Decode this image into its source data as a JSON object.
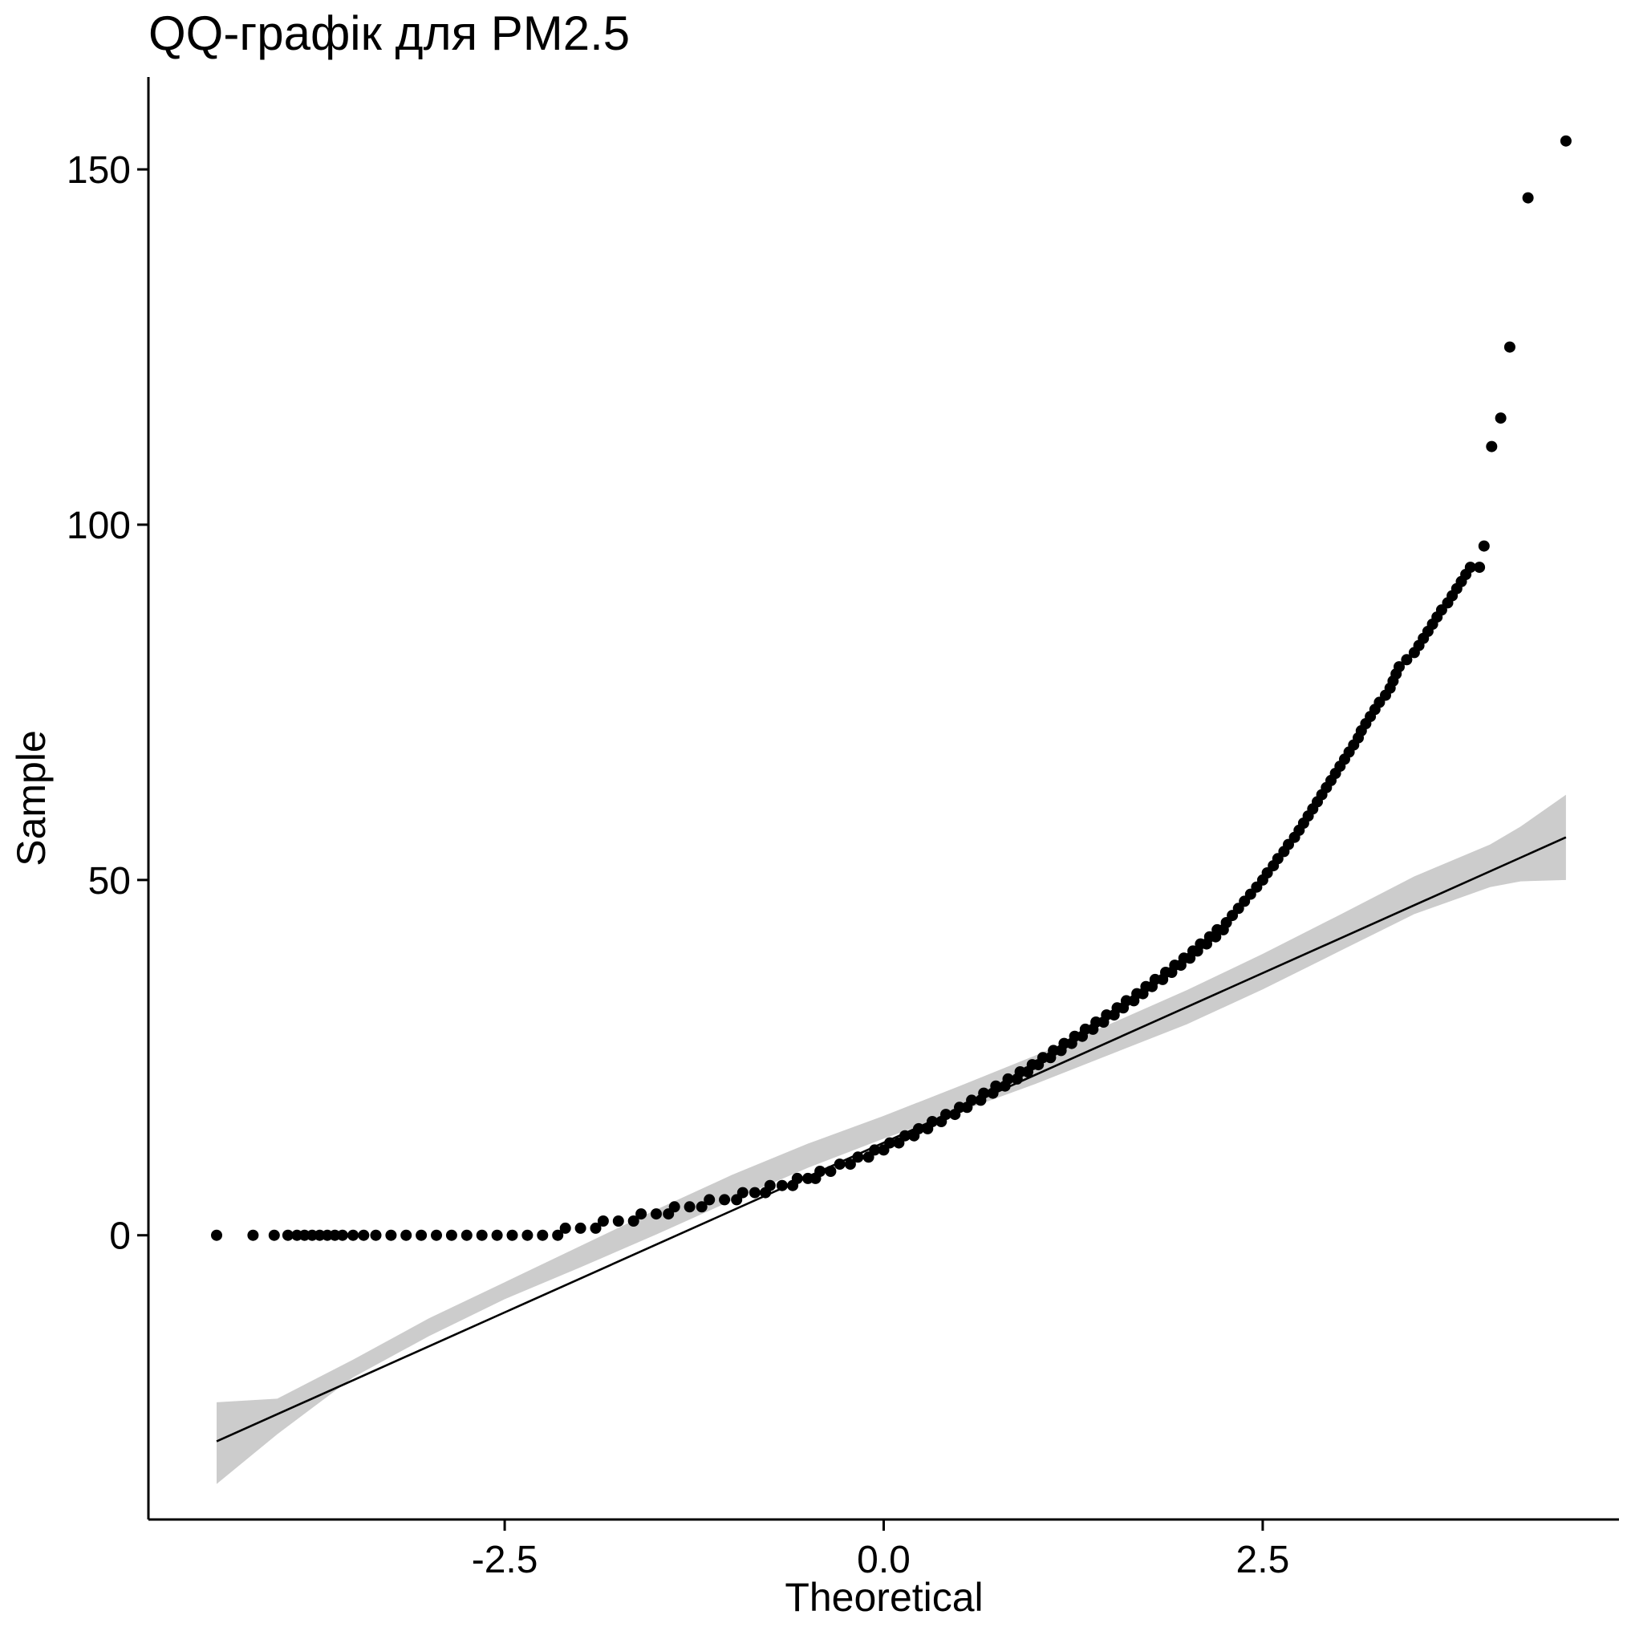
{
  "chart_data": {
    "type": "scatter",
    "title": "QQ-графік для PM2.5",
    "xlabel": "Theoretical",
    "ylabel": "Sample",
    "xlim": [
      -4.85,
      4.85
    ],
    "ylim": [
      -40,
      163
    ],
    "x_ticks": [
      -2.5,
      0.0,
      2.5
    ],
    "x_tick_labels": [
      "-2.5",
      "0.0",
      "2.5"
    ],
    "y_ticks": [
      0,
      50,
      100,
      150
    ],
    "y_tick_labels": [
      "0",
      "50",
      "100",
      "150"
    ],
    "grid": false,
    "legend": "none",
    "colors": {
      "points": "#000000",
      "line": "#000000",
      "band": "#cccccc"
    },
    "points": [
      [
        -4.4,
        0
      ],
      [
        -4.16,
        0
      ],
      [
        -4.02,
        0
      ],
      [
        -3.93,
        0
      ],
      [
        -3.87,
        0
      ],
      [
        -3.82,
        0
      ],
      [
        -3.77,
        0
      ],
      [
        -3.72,
        0
      ],
      [
        -3.67,
        0
      ],
      [
        -3.62,
        0
      ],
      [
        -3.57,
        0
      ],
      [
        -3.5,
        0
      ],
      [
        -3.43,
        0
      ],
      [
        -3.35,
        0
      ],
      [
        -3.25,
        0
      ],
      [
        -3.15,
        0
      ],
      [
        -3.05,
        0
      ],
      [
        -2.95,
        0
      ],
      [
        -2.85,
        0
      ],
      [
        -2.75,
        0
      ],
      [
        -2.65,
        0
      ],
      [
        -2.55,
        0
      ],
      [
        -2.45,
        0
      ],
      [
        -2.35,
        0
      ],
      [
        -2.25,
        0
      ],
      [
        -2.15,
        0
      ],
      [
        -2.1,
        1
      ],
      [
        -2.0,
        1
      ],
      [
        -1.9,
        1
      ],
      [
        -1.85,
        2
      ],
      [
        -1.75,
        2
      ],
      [
        -1.65,
        2
      ],
      [
        -1.6,
        3
      ],
      [
        -1.5,
        3
      ],
      [
        -1.42,
        3
      ],
      [
        -1.38,
        4
      ],
      [
        -1.28,
        4
      ],
      [
        -1.2,
        4
      ],
      [
        -1.15,
        5
      ],
      [
        -1.05,
        5
      ],
      [
        -0.97,
        5
      ],
      [
        -0.93,
        6
      ],
      [
        -0.85,
        6
      ],
      [
        -0.78,
        6
      ],
      [
        -0.75,
        7
      ],
      [
        -0.67,
        7
      ],
      [
        -0.6,
        7
      ],
      [
        -0.57,
        8
      ],
      [
        -0.5,
        8
      ],
      [
        -0.45,
        8
      ],
      [
        -0.42,
        9
      ],
      [
        -0.35,
        9
      ],
      [
        -0.29,
        10
      ],
      [
        -0.22,
        10
      ],
      [
        -0.17,
        11
      ],
      [
        -0.1,
        11
      ],
      [
        -0.06,
        12
      ],
      [
        0.0,
        12
      ],
      [
        0.04,
        13
      ],
      [
        0.1,
        13
      ],
      [
        0.14,
        14
      ],
      [
        0.2,
        14
      ],
      [
        0.23,
        15
      ],
      [
        0.29,
        15
      ],
      [
        0.32,
        16
      ],
      [
        0.38,
        16
      ],
      [
        0.41,
        17
      ],
      [
        0.47,
        17
      ],
      [
        0.5,
        18
      ],
      [
        0.55,
        18
      ],
      [
        0.58,
        19
      ],
      [
        0.64,
        19
      ],
      [
        0.66,
        20
      ],
      [
        0.72,
        20
      ],
      [
        0.74,
        21
      ],
      [
        0.8,
        21
      ],
      [
        0.82,
        22
      ],
      [
        0.88,
        22
      ],
      [
        0.9,
        23
      ],
      [
        0.95,
        23
      ],
      [
        0.98,
        24
      ],
      [
        1.02,
        24
      ],
      [
        1.05,
        25
      ],
      [
        1.1,
        25
      ],
      [
        1.12,
        26
      ],
      [
        1.17,
        26
      ],
      [
        1.19,
        27
      ],
      [
        1.24,
        27
      ],
      [
        1.26,
        28
      ],
      [
        1.31,
        28
      ],
      [
        1.33,
        29
      ],
      [
        1.38,
        29
      ],
      [
        1.4,
        30
      ],
      [
        1.45,
        30
      ],
      [
        1.47,
        31
      ],
      [
        1.52,
        31
      ],
      [
        1.54,
        32
      ],
      [
        1.58,
        32
      ],
      [
        1.6,
        33
      ],
      [
        1.65,
        33
      ],
      [
        1.67,
        34
      ],
      [
        1.71,
        34
      ],
      [
        1.73,
        35
      ],
      [
        1.77,
        35
      ],
      [
        1.79,
        36
      ],
      [
        1.84,
        36
      ],
      [
        1.86,
        37
      ],
      [
        1.9,
        37
      ],
      [
        1.92,
        38
      ],
      [
        1.96,
        38
      ],
      [
        1.98,
        39
      ],
      [
        2.02,
        39
      ],
      [
        2.04,
        40
      ],
      [
        2.07,
        40
      ],
      [
        2.09,
        41
      ],
      [
        2.13,
        41
      ],
      [
        2.15,
        42
      ],
      [
        2.19,
        42
      ],
      [
        2.2,
        43
      ],
      [
        2.24,
        43
      ],
      [
        2.26,
        44
      ],
      [
        2.3,
        45
      ],
      [
        2.34,
        46
      ],
      [
        2.38,
        47
      ],
      [
        2.42,
        48
      ],
      [
        2.46,
        49
      ],
      [
        2.5,
        50
      ],
      [
        2.53,
        51
      ],
      [
        2.57,
        52
      ],
      [
        2.6,
        53
      ],
      [
        2.64,
        54
      ],
      [
        2.67,
        55
      ],
      [
        2.71,
        56
      ],
      [
        2.74,
        57
      ],
      [
        2.77,
        58
      ],
      [
        2.8,
        59
      ],
      [
        2.83,
        60
      ],
      [
        2.86,
        61
      ],
      [
        2.89,
        62
      ],
      [
        2.92,
        63
      ],
      [
        2.95,
        64
      ],
      [
        2.98,
        65
      ],
      [
        3.01,
        66
      ],
      [
        3.04,
        67
      ],
      [
        3.07,
        68
      ],
      [
        3.1,
        69
      ],
      [
        3.13,
        70
      ],
      [
        3.15,
        71
      ],
      [
        3.18,
        72
      ],
      [
        3.21,
        73
      ],
      [
        3.24,
        74
      ],
      [
        3.27,
        75
      ],
      [
        3.31,
        76
      ],
      [
        3.34,
        77
      ],
      [
        3.36,
        78
      ],
      [
        3.38,
        79
      ],
      [
        3.4,
        80
      ],
      [
        3.45,
        81
      ],
      [
        3.5,
        82
      ],
      [
        3.53,
        83
      ],
      [
        3.56,
        84
      ],
      [
        3.59,
        85
      ],
      [
        3.62,
        86
      ],
      [
        3.65,
        87
      ],
      [
        3.68,
        88
      ],
      [
        3.72,
        89
      ],
      [
        3.75,
        90
      ],
      [
        3.78,
        91
      ],
      [
        3.81,
        92
      ],
      [
        3.84,
        93
      ],
      [
        3.87,
        94
      ],
      [
        3.93,
        94
      ],
      [
        3.96,
        97
      ],
      [
        4.01,
        111
      ],
      [
        4.07,
        115
      ],
      [
        4.13,
        125
      ],
      [
        4.25,
        146
      ],
      [
        4.5,
        154
      ]
    ],
    "reference_line": [
      [
        -4.4,
        -29
      ],
      [
        4.5,
        56
      ]
    ],
    "confidence_band": {
      "x": [
        -4.4,
        -4.0,
        -3.5,
        -3.0,
        -2.5,
        -2.0,
        -1.5,
        -1.0,
        -0.5,
        0.0,
        0.5,
        1.0,
        1.5,
        2.0,
        2.5,
        3.0,
        3.5,
        4.0,
        4.2,
        4.5
      ],
      "upper": [
        -23.5,
        -23,
        -17.5,
        -11.7,
        -6.6,
        -1.5,
        3.6,
        8.5,
        12.9,
        16.8,
        21.0,
        25.3,
        29.8,
        34.5,
        39.6,
        45.0,
        50.5,
        55.0,
        57.5,
        62
      ],
      "lower": [
        -35,
        -28,
        -20.0,
        -14.2,
        -9.0,
        -4.5,
        0.1,
        4.9,
        9.5,
        13.6,
        17.4,
        21.3,
        25.5,
        29.7,
        34.6,
        39.9,
        45.2,
        49.0,
        49.8,
        50
      ]
    }
  }
}
